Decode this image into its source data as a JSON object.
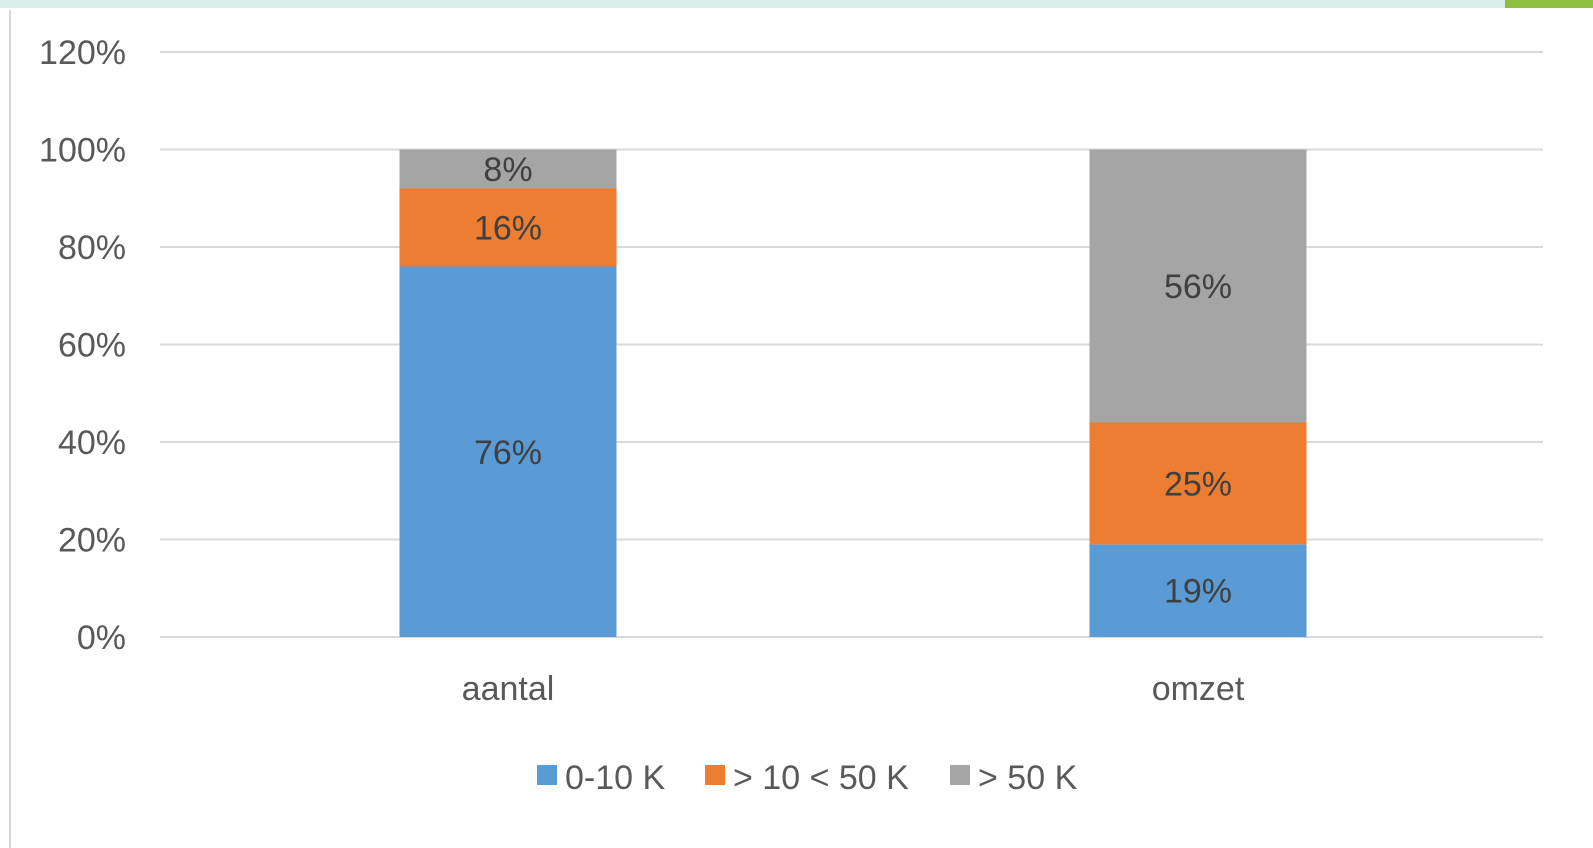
{
  "chart_data": {
    "type": "bar",
    "stacked": true,
    "categories": [
      "aantal",
      "omzet"
    ],
    "series": [
      {
        "name": "0-10 K",
        "values": [
          76,
          19
        ],
        "labels": [
          "76%",
          "19%"
        ],
        "color": "#5b9bd5"
      },
      {
        "name": "> 10 < 50 K",
        "values": [
          16,
          25
        ],
        "labels": [
          "16%",
          "25%"
        ],
        "color": "#ed7d31"
      },
      {
        "name": "> 50 K",
        "values": [
          8,
          56
        ],
        "labels": [
          "8%",
          "56%"
        ],
        "color": "#a5a5a5"
      }
    ],
    "ylim": [
      0,
      120
    ],
    "yticks": [
      0,
      20,
      40,
      60,
      80,
      100,
      120
    ],
    "ytick_labels": [
      "0%",
      "20%",
      "40%",
      "60%",
      "80%",
      "100%",
      "120%"
    ],
    "grid": true,
    "legend_position": "bottom",
    "title": "",
    "xlabel": "",
    "ylabel": ""
  },
  "colors": {
    "grid": "#d9d9d9",
    "top_band": "#d9ece7",
    "top_accent": "#8fbf3f"
  }
}
